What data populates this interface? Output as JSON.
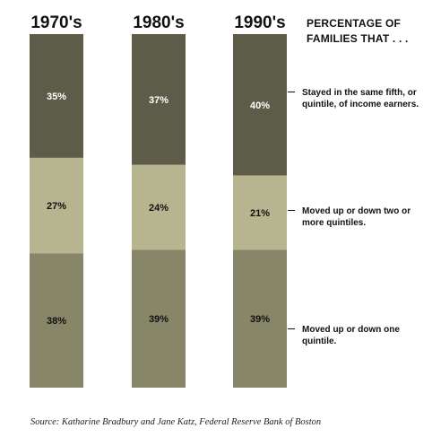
{
  "chart_data": {
    "type": "bar",
    "stacked": true,
    "categories": [
      "1970's",
      "1980's",
      "1990's"
    ],
    "series": [
      {
        "name": "Stayed in the same fifth, or quintile, of income earners.",
        "values": [
          35,
          37,
          40
        ],
        "color": "#5c5c49"
      },
      {
        "name": "Moved up or down two or more quintiles.",
        "values": [
          27,
          24,
          21
        ],
        "color": "#b6b58f"
      },
      {
        "name": "Moved up or down one quintile.",
        "values": [
          38,
          39,
          39
        ],
        "color": "#878668"
      }
    ],
    "value_labels": [
      [
        "35%",
        "37%",
        "40%"
      ],
      [
        "27%",
        "24%",
        "21%"
      ],
      [
        "38%",
        "39%",
        "39%"
      ]
    ],
    "ylim": [
      0,
      100
    ],
    "title": "PERCENTAGE OF FAMILIES THAT . . .",
    "legend_position": "right"
  },
  "heading": "PERCENTAGE OF FAMILIES THAT . . .",
  "legend": {
    "stayed": "Stayed in the same fifth, or quintile, of income earners.",
    "two_or_more": "Moved up or down two or more quintiles.",
    "one": "Moved up or down one quintile."
  },
  "source": "Source: Katharine Bradbury and Jane Katz, Federal Reserve Bank of Boston"
}
